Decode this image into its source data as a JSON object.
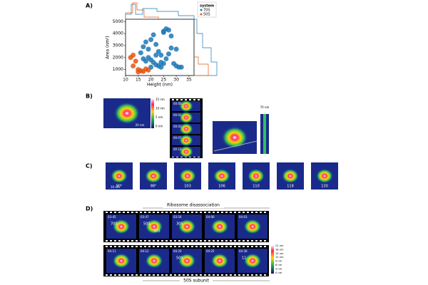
{
  "panel_labels": [
    "A)",
    "B)",
    "C)",
    "D)"
  ],
  "chart_data": {
    "type": "scatter",
    "x_label": "Height (nm)",
    "y_label": "Area (nm²)",
    "legend_title": "system",
    "xlim": [
      10,
      37
    ],
    "ylim": [
      500,
      5200
    ],
    "xticks": [
      10,
      15,
      20,
      25,
      30,
      35
    ],
    "yticks": [
      1000,
      2000,
      3000,
      4000,
      5000
    ],
    "series": [
      {
        "name": "70S",
        "color": "#1f77b4",
        "x": [
          16,
          17,
          18,
          19,
          20,
          21,
          22,
          23,
          24,
          25,
          26,
          27,
          28,
          29,
          30,
          31,
          18,
          20,
          22,
          24,
          26,
          28,
          19,
          21,
          23,
          25,
          27,
          25,
          24,
          30,
          32,
          20,
          22,
          17
        ],
        "y": [
          2400,
          2900,
          3300,
          2700,
          3500,
          3900,
          3100,
          2500,
          2200,
          4200,
          4400,
          2300,
          2800,
          1500,
          1300,
          1200,
          1700,
          1800,
          1400,
          1600,
          1900,
          3800,
          2000,
          1600,
          1300,
          4100,
          4300,
          1500,
          1200,
          2700,
          1200,
          1200,
          2200,
          1900
        ]
      },
      {
        "name": "50S",
        "color": "#e6550d",
        "x": [
          12,
          13,
          14,
          15,
          16,
          17,
          18,
          19,
          13,
          15
        ],
        "y": [
          2000,
          2200,
          1700,
          1000,
          900,
          850,
          1050,
          950,
          1300,
          800
        ]
      }
    ]
  },
  "panel_b": {
    "scale_left": "20 nm",
    "colorbar": [
      "15 nm",
      "10 nm",
      "5 nm",
      "0 nm"
    ],
    "frame_times": [
      "00:00",
      "00:01",
      "00:03",
      "00:07",
      "00:10"
    ],
    "scale_right": "70 nm"
  },
  "panel_c": {
    "angles": [
      "90°",
      "98°",
      "103",
      "106",
      "110",
      "118",
      "130"
    ],
    "scale": "10 nm"
  },
  "panel_d": {
    "top_caption": "Ribosome disassociation",
    "bottom_caption": "50S subunit",
    "row1": [
      {
        "time": "03:45",
        "labels": [
          "70S"
        ]
      },
      {
        "time": "03:47",
        "labels": [
          "50S",
          "30S"
        ]
      },
      {
        "time": "03:54",
        "labels": [
          "30S"
        ]
      },
      {
        "time": "04:00",
        "labels": []
      },
      {
        "time": "04:03",
        "labels": []
      }
    ],
    "row2": [
      {
        "time": "04:11",
        "labels": []
      },
      {
        "time": "04:12",
        "labels": []
      },
      {
        "time": "04:20",
        "labels": [
          "50S"
        ]
      },
      {
        "time": "04:25",
        "labels": []
      },
      {
        "time": "04:30",
        "labels": [
          "11"
        ]
      }
    ],
    "colorbar": [
      "21 nm",
      "18 nm",
      "15 nm",
      "12 nm",
      "9 nm",
      "6 nm",
      "3 nm",
      "0 nm"
    ]
  }
}
